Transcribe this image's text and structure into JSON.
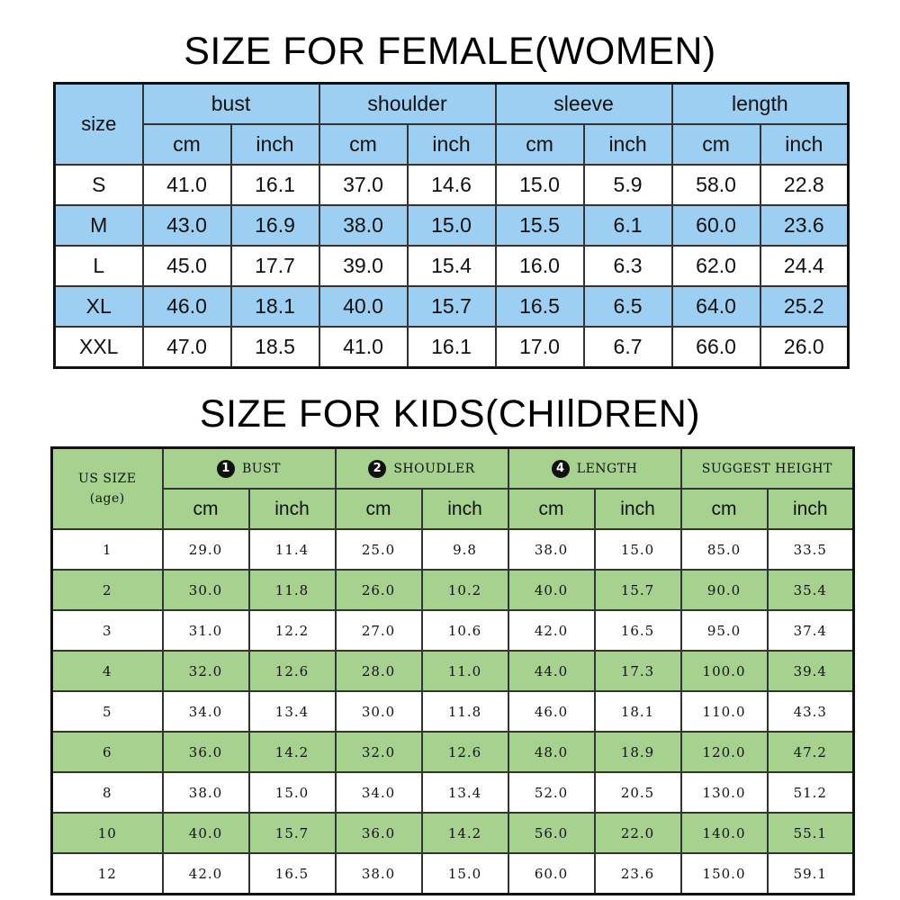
{
  "women": {
    "title": "SIZE FOR FEMALE(WOMEN)",
    "size_header": "size",
    "groups": [
      "bust",
      "shoulder",
      "sleeve",
      "length"
    ],
    "units": [
      "cm",
      "inch"
    ],
    "rows": [
      {
        "size": "S",
        "values": [
          "41.0",
          "16.1",
          "37.0",
          "14.6",
          "15.0",
          "5.9",
          "58.0",
          "22.8"
        ]
      },
      {
        "size": "M",
        "values": [
          "43.0",
          "16.9",
          "38.0",
          "15.0",
          "15.5",
          "6.1",
          "60.0",
          "23.6"
        ]
      },
      {
        "size": "L",
        "values": [
          "45.0",
          "17.7",
          "39.0",
          "15.4",
          "16.0",
          "6.3",
          "62.0",
          "24.4"
        ]
      },
      {
        "size": "XL",
        "values": [
          "46.0",
          "18.1",
          "40.0",
          "15.7",
          "16.5",
          "6.5",
          "64.0",
          "25.2"
        ]
      },
      {
        "size": "XXL",
        "values": [
          "47.0",
          "18.5",
          "41.0",
          "16.1",
          "17.0",
          "6.7",
          "66.0",
          "26.0"
        ]
      }
    ]
  },
  "kids": {
    "title": "SIZE FOR KIDS(CHIlDREN)",
    "size_header_line1": "US SIZE",
    "size_header_line2": "(age)",
    "groups": [
      {
        "badge": "1",
        "label": "BUST"
      },
      {
        "badge": "2",
        "label": "SHOUDLER"
      },
      {
        "badge": "4",
        "label": "LENGTH"
      },
      {
        "badge": "",
        "label": "SUGGEST HEIGHT"
      }
    ],
    "units": [
      "cm",
      "inch"
    ],
    "rows": [
      {
        "size": "1",
        "values": [
          "29.0",
          "11.4",
          "25.0",
          "9.8",
          "38.0",
          "15.0",
          "85.0",
          "33.5"
        ]
      },
      {
        "size": "2",
        "values": [
          "30.0",
          "11.8",
          "26.0",
          "10.2",
          "40.0",
          "15.7",
          "90.0",
          "35.4"
        ]
      },
      {
        "size": "3",
        "values": [
          "31.0",
          "12.2",
          "27.0",
          "10.6",
          "42.0",
          "16.5",
          "95.0",
          "37.4"
        ]
      },
      {
        "size": "4",
        "values": [
          "32.0",
          "12.6",
          "28.0",
          "11.0",
          "44.0",
          "17.3",
          "100.0",
          "39.4"
        ]
      },
      {
        "size": "5",
        "values": [
          "34.0",
          "13.4",
          "30.0",
          "11.8",
          "46.0",
          "18.1",
          "110.0",
          "43.3"
        ]
      },
      {
        "size": "6",
        "values": [
          "36.0",
          "14.2",
          "32.0",
          "12.6",
          "48.0",
          "18.9",
          "120.0",
          "47.2"
        ]
      },
      {
        "size": "8",
        "values": [
          "38.0",
          "15.0",
          "34.0",
          "13.4",
          "52.0",
          "20.5",
          "130.0",
          "51.2"
        ]
      },
      {
        "size": "10",
        "values": [
          "40.0",
          "15.7",
          "36.0",
          "14.2",
          "56.0",
          "22.0",
          "140.0",
          "55.1"
        ]
      },
      {
        "size": "12",
        "values": [
          "42.0",
          "16.5",
          "38.0",
          "15.0",
          "60.0",
          "23.6",
          "150.0",
          "59.1"
        ]
      }
    ]
  },
  "colors": {
    "women_accent": "#9ccff2",
    "kids_accent": "#a6d18f"
  }
}
